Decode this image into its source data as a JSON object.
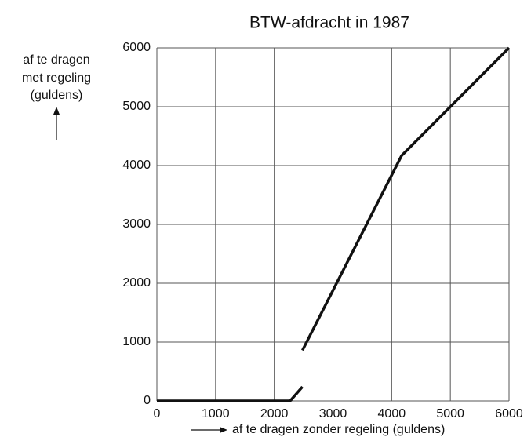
{
  "chart_data": {
    "type": "line",
    "title": "BTW-afdracht in 1987",
    "ylabel": [
      "af te dragen",
      "met regeling",
      "(guldens)"
    ],
    "xlabel": "af te dragen zonder regeling (guldens)",
    "series": [
      {
        "name": null,
        "color": "#111111",
        "x": [
          0,
          2270,
          2480,
          2480,
          2480,
          4170,
          6000
        ],
        "values": [
          0,
          0,
          240,
          null,
          860,
          4170,
          6000
        ]
      }
    ],
    "xlim": [
      0,
      6000
    ],
    "ylim": [
      0,
      6000
    ],
    "xticks": [
      0,
      1000,
      2000,
      3000,
      4000,
      5000,
      6000
    ],
    "yticks": [
      0,
      1000,
      2000,
      3000,
      4000,
      5000,
      6000
    ],
    "grid": true
  }
}
